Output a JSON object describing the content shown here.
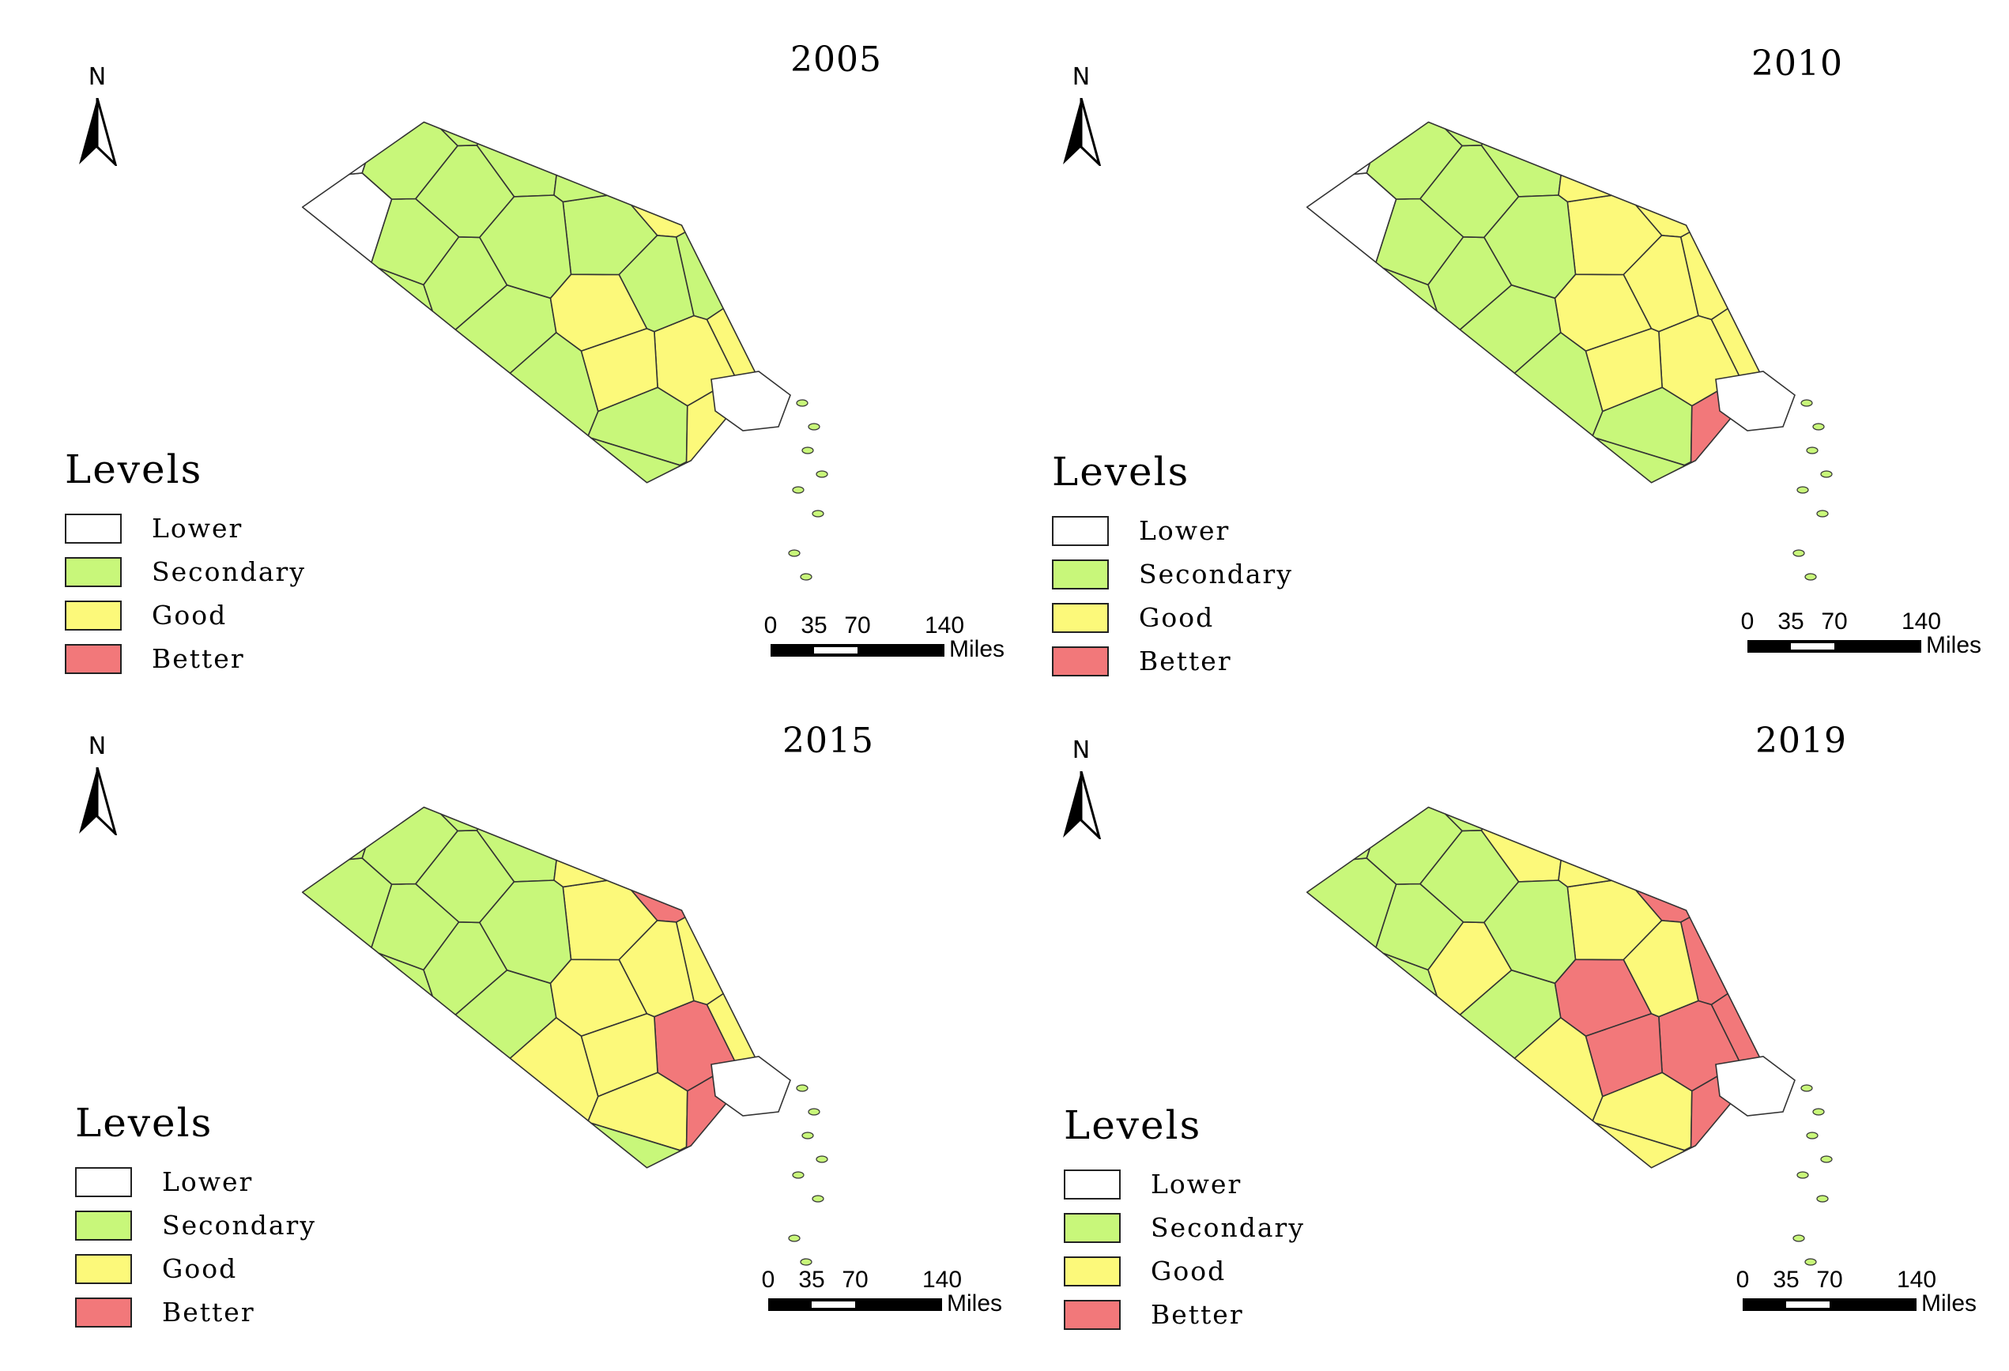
{
  "colors": {
    "lower": "#ffffff",
    "secondary": "#c8f77a",
    "good": "#fcf97a",
    "better": "#f2787a",
    "border": "#333333",
    "water": "#ffffff"
  },
  "legend": {
    "title": "Levels",
    "items": [
      {
        "key": "lower",
        "label": "Lower"
      },
      {
        "key": "secondary",
        "label": "Secondary"
      },
      {
        "key": "good",
        "label": "Good"
      },
      {
        "key": "better",
        "label": "Better"
      }
    ]
  },
  "north_arrow": {
    "label": "N"
  },
  "scale_bar": {
    "ticks": [
      "0",
      "35",
      "70",
      "140"
    ],
    "units": "Miles"
  },
  "maps": [
    {
      "year": "2005"
    },
    {
      "year": "2010"
    },
    {
      "year": "2015"
    },
    {
      "year": "2019"
    }
  ]
}
